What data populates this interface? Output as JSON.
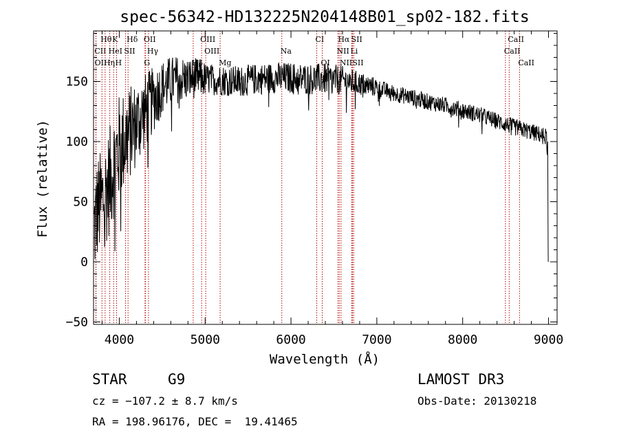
{
  "chart_data": {
    "type": "line",
    "title": "spec-56342-HD132225N204148B01_sp02-182.fits",
    "xlabel": "Wavelength (Å)",
    "ylabel": "Flux (relative)",
    "xlim": [
      3700,
      9100
    ],
    "ylim": [
      -52,
      192
    ],
    "xticks": [
      4000,
      5000,
      6000,
      7000,
      8000,
      9000
    ],
    "yticks": [
      -50,
      0,
      50,
      100,
      150
    ],
    "grid": false,
    "series": [
      {
        "name": "spectrum",
        "anchors_x": [
          3700,
          3750,
          3800,
          3850,
          3900,
          3950,
          4000,
          4100,
          4200,
          4300,
          4400,
          4500,
          4600,
          4700,
          4800,
          4900,
          5000,
          5200,
          5400,
          5600,
          5800,
          6000,
          6200,
          6400,
          6600,
          6800,
          7000,
          7200,
          7400,
          7600,
          7800,
          8000,
          8200,
          8400,
          8600,
          8800,
          8980,
          9000
        ],
        "anchors_y": [
          25,
          45,
          50,
          60,
          70,
          85,
          95,
          105,
          115,
          125,
          135,
          145,
          150,
          152,
          152,
          153,
          152,
          151,
          150,
          152,
          153,
          153,
          152,
          152,
          151,
          148,
          145,
          140,
          137,
          133,
          130,
          126,
          122,
          117,
          112,
          108,
          104,
          20
        ]
      }
    ],
    "lines": [
      {
        "label": "Hθ",
        "x": 3798,
        "row": 0
      },
      {
        "label": "K",
        "x": 3934,
        "row": 0
      },
      {
        "label": "Hδ",
        "x": 4102,
        "row": 0
      },
      {
        "label": "OII",
        "x": 4300,
        "row": 0
      },
      {
        "label": "OIII",
        "x": 4959,
        "row": 0
      },
      {
        "label": "CI",
        "x": 6300,
        "row": 0
      },
      {
        "label": "Hα",
        "x": 6563,
        "row": 0
      },
      {
        "label": "SII",
        "x": 6717,
        "row": 0
      },
      {
        "label": "CaII",
        "x": 8542,
        "row": 0
      },
      {
        "label": "CII",
        "x": 3727,
        "row": 1
      },
      {
        "label": "HeI",
        "x": 3889,
        "row": 1
      },
      {
        "label": "SII",
        "x": 4072,
        "row": 1
      },
      {
        "label": "Hγ",
        "x": 4340,
        "row": 1
      },
      {
        "label": "OIII",
        "x": 5007,
        "row": 1
      },
      {
        "label": "Na",
        "x": 5893,
        "row": 1
      },
      {
        "label": "NII",
        "x": 6548,
        "row": 1
      },
      {
        "label": "Li",
        "x": 6708,
        "row": 1
      },
      {
        "label": "CaII",
        "x": 8498,
        "row": 1
      },
      {
        "label": "OII",
        "x": 3729,
        "row": 2
      },
      {
        "label": "Hη",
        "x": 3835,
        "row": 2
      },
      {
        "label": "H",
        "x": 3968,
        "row": 2
      },
      {
        "label": "G",
        "x": 4304,
        "row": 2
      },
      {
        "label": "Hβ",
        "x": 4861,
        "row": 2
      },
      {
        "label": "Mg",
        "x": 5175,
        "row": 2
      },
      {
        "label": "OI",
        "x": 6364,
        "row": 2
      },
      {
        "label": "NII",
        "x": 6583,
        "row": 2
      },
      {
        "label": "SII",
        "x": 6731,
        "row": 2
      },
      {
        "label": "CaII",
        "x": 8662,
        "row": 2
      }
    ]
  },
  "info": {
    "object_type": "STAR",
    "subclass": "G9",
    "survey": "LAMOST DR3",
    "cz": "cz = −107.2 ± 8.7 km/s",
    "obs_date": "Obs-Date: 20130218",
    "coords": "RA = 198.96176, DEC =  19.41465"
  }
}
